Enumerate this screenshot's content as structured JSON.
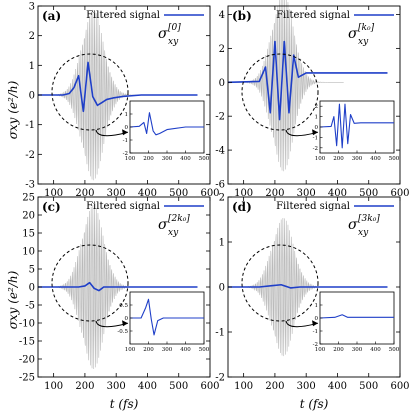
{
  "figure": {
    "xlabel": "t (fs)",
    "ylabel": "σxy (e²/h)",
    "colors": {
      "filtered": "#1f3fc8",
      "raw": "#b9b9b9",
      "axis": "#000000"
    }
  },
  "chart_data": [
    {
      "id": "a",
      "type": "line",
      "label": "(a)",
      "legend": "Filtered signal",
      "legend_placement": "top-right",
      "series_symbol": "σ",
      "series_sub": "xy",
      "series_sup": "[0]",
      "xlim": [
        50,
        600
      ],
      "ylim": [
        -3,
        3
      ],
      "xticks": [
        100,
        200,
        300,
        400,
        500,
        600
      ],
      "yticks": [
        -3,
        -2,
        -1,
        0,
        1,
        2,
        3
      ],
      "ytick_labels": [
        "-3",
        "-2",
        "-1",
        "0",
        "1",
        "2",
        "3"
      ],
      "grid": false,
      "raw_envelope": 2.9,
      "filtered": {
        "x": [
          50,
          130,
          150,
          165,
          180,
          195,
          210,
          225,
          240,
          255,
          270,
          290,
          320,
          380,
          560
        ],
        "y": [
          0,
          0,
          0.05,
          0.25,
          0.65,
          -0.55,
          1.1,
          -0.05,
          -0.35,
          -0.25,
          -0.15,
          -0.1,
          -0.05,
          0,
          0
        ]
      },
      "inset": {
        "xlim": [
          100,
          500
        ],
        "ylim": [
          -2,
          2
        ],
        "xticks": [
          100,
          200,
          300,
          400,
          500
        ],
        "yticks": [
          -2,
          -1,
          0,
          1
        ],
        "filtered": {
          "x": [
            100,
            150,
            175,
            190,
            205,
            225,
            240,
            260,
            300,
            400,
            500
          ],
          "y": [
            0,
            0.05,
            0.35,
            -0.5,
            1.1,
            -0.3,
            -0.6,
            -0.5,
            -0.2,
            0,
            0
          ]
        }
      }
    },
    {
      "id": "b",
      "type": "line",
      "label": "(b)",
      "legend": "Filtered signal",
      "legend_placement": "top-right",
      "series_symbol": "σ",
      "series_sub": "xy",
      "series_sup": "[k₀]",
      "xlim": [
        50,
        600
      ],
      "ylim": [
        -6,
        4.5
      ],
      "xticks": [
        100,
        200,
        300,
        400,
        500,
        600
      ],
      "yticks": [
        -6,
        -4,
        -2,
        0,
        2,
        4
      ],
      "ytick_labels": [
        "-6",
        "-4",
        "-2",
        "0",
        "2",
        "4"
      ],
      "grid": false,
      "raw_envelope": 5.3,
      "filtered": {
        "x": [
          50,
          150,
          170,
          185,
          200,
          215,
          230,
          245,
          260,
          275,
          300,
          330,
          560
        ],
        "y": [
          0,
          0.05,
          0.9,
          -1.8,
          2.4,
          -2.2,
          2.4,
          -1.8,
          1.6,
          0.3,
          0.55,
          0.55,
          0.55
        ]
      },
      "inset": {
        "xlim": [
          100,
          500
        ],
        "ylim": [
          -2.5,
          2.5
        ],
        "xticks": [
          100,
          200,
          300,
          400,
          500
        ],
        "yticks": [
          -2,
          -1,
          0,
          1,
          2
        ],
        "filtered": {
          "x": [
            100,
            160,
            175,
            190,
            205,
            220,
            235,
            250,
            265,
            285,
            320,
            500
          ],
          "y": [
            0,
            0.05,
            1,
            -1.8,
            2.2,
            -2,
            2.2,
            -1.6,
            1.2,
            0.35,
            0.4,
            0.4
          ]
        }
      }
    },
    {
      "id": "c",
      "type": "line",
      "label": "(c)",
      "legend": "Filtered signal",
      "legend_placement": "top-right",
      "series_symbol": "σ",
      "series_sub": "xy",
      "series_sup": "[2k₀]",
      "xlim": [
        50,
        600
      ],
      "ylim": [
        -25,
        25
      ],
      "xticks": [
        100,
        200,
        300,
        400,
        500,
        600
      ],
      "yticks": [
        -25,
        -20,
        -15,
        -10,
        -5,
        0,
        5,
        10,
        15,
        20,
        25
      ],
      "ytick_labels": [
        "-25",
        "-20",
        "-15",
        "-10",
        "-5",
        "0",
        "5",
        "10",
        "15",
        "20",
        "25"
      ],
      "grid": false,
      "raw_envelope": 23,
      "filtered": {
        "x": [
          50,
          180,
          200,
          215,
          230,
          245,
          260,
          560
        ],
        "y": [
          0,
          0,
          0.3,
          1.2,
          -0.4,
          -1,
          0,
          0
        ]
      },
      "inset": {
        "xlim": [
          100,
          500
        ],
        "ylim": [
          -1,
          1
        ],
        "xticks": [
          100,
          200,
          300,
          400,
          500
        ],
        "yticks": [
          -0.5,
          0,
          0.5
        ],
        "filtered": {
          "x": [
            100,
            160,
            185,
            200,
            215,
            230,
            250,
            280,
            500
          ],
          "y": [
            0,
            0,
            0.4,
            0.72,
            -0.05,
            -0.65,
            -0.1,
            0,
            0
          ]
        }
      }
    },
    {
      "id": "d",
      "type": "line",
      "label": "(d)",
      "legend": "Filtered signal",
      "legend_placement": "top-right",
      "series_symbol": "σ",
      "series_sub": "xy",
      "series_sup": "[3k₀]",
      "xlim": [
        50,
        600
      ],
      "ylim": [
        -2,
        2
      ],
      "xticks": [
        100,
        200,
        300,
        400,
        500,
        600
      ],
      "yticks": [
        -2,
        -1,
        0,
        1,
        2
      ],
      "ytick_labels": [
        "-2",
        "-1",
        "0",
        "1",
        "2"
      ],
      "grid": false,
      "raw_envelope": 1.55,
      "filtered": {
        "x": [
          50,
          150,
          190,
          220,
          250,
          280,
          560
        ],
        "y": [
          0,
          0,
          0.03,
          0.05,
          -0.02,
          0,
          0
        ]
      },
      "inset": {
        "xlim": [
          100,
          500
        ],
        "ylim": [
          -2,
          2
        ],
        "xticks": [
          100,
          200,
          300,
          400,
          500
        ],
        "yticks": [
          -2,
          -1,
          0,
          1
        ],
        "filtered": {
          "x": [
            100,
            180,
            220,
            250,
            300,
            500
          ],
          "y": [
            0,
            0.05,
            0.25,
            0.05,
            0.05,
            0.05
          ]
        }
      }
    }
  ]
}
